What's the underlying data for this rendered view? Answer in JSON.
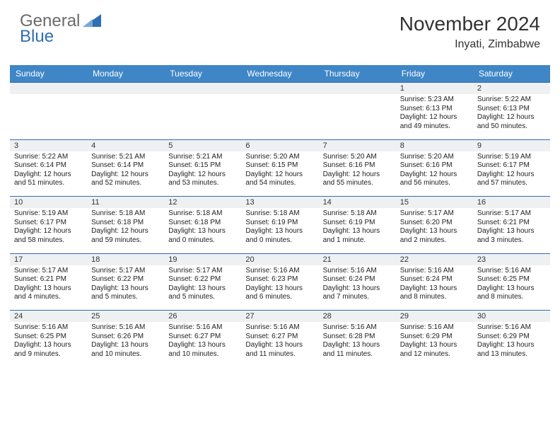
{
  "brand": {
    "word1": "General",
    "word2": "Blue"
  },
  "header": {
    "month_title": "November 2024",
    "location": "Inyati, Zimbabwe"
  },
  "colors": {
    "header_bg": "#3f86c7",
    "rule": "#2f6fb3",
    "daynum_bg": "#eef0f2"
  },
  "weekdays": [
    "Sunday",
    "Monday",
    "Tuesday",
    "Wednesday",
    "Thursday",
    "Friday",
    "Saturday"
  ],
  "weeks": [
    [
      null,
      null,
      null,
      null,
      null,
      {
        "n": "1",
        "sunrise": "5:23 AM",
        "sunset": "6:13 PM",
        "dl1": "Daylight: 12 hours",
        "dl2": "and 49 minutes."
      },
      {
        "n": "2",
        "sunrise": "5:22 AM",
        "sunset": "6:13 PM",
        "dl1": "Daylight: 12 hours",
        "dl2": "and 50 minutes."
      }
    ],
    [
      {
        "n": "3",
        "sunrise": "5:22 AM",
        "sunset": "6:14 PM",
        "dl1": "Daylight: 12 hours",
        "dl2": "and 51 minutes."
      },
      {
        "n": "4",
        "sunrise": "5:21 AM",
        "sunset": "6:14 PM",
        "dl1": "Daylight: 12 hours",
        "dl2": "and 52 minutes."
      },
      {
        "n": "5",
        "sunrise": "5:21 AM",
        "sunset": "6:15 PM",
        "dl1": "Daylight: 12 hours",
        "dl2": "and 53 minutes."
      },
      {
        "n": "6",
        "sunrise": "5:20 AM",
        "sunset": "6:15 PM",
        "dl1": "Daylight: 12 hours",
        "dl2": "and 54 minutes."
      },
      {
        "n": "7",
        "sunrise": "5:20 AM",
        "sunset": "6:16 PM",
        "dl1": "Daylight: 12 hours",
        "dl2": "and 55 minutes."
      },
      {
        "n": "8",
        "sunrise": "5:20 AM",
        "sunset": "6:16 PM",
        "dl1": "Daylight: 12 hours",
        "dl2": "and 56 minutes."
      },
      {
        "n": "9",
        "sunrise": "5:19 AM",
        "sunset": "6:17 PM",
        "dl1": "Daylight: 12 hours",
        "dl2": "and 57 minutes."
      }
    ],
    [
      {
        "n": "10",
        "sunrise": "5:19 AM",
        "sunset": "6:17 PM",
        "dl1": "Daylight: 12 hours",
        "dl2": "and 58 minutes."
      },
      {
        "n": "11",
        "sunrise": "5:18 AM",
        "sunset": "6:18 PM",
        "dl1": "Daylight: 12 hours",
        "dl2": "and 59 minutes."
      },
      {
        "n": "12",
        "sunrise": "5:18 AM",
        "sunset": "6:18 PM",
        "dl1": "Daylight: 13 hours",
        "dl2": "and 0 minutes."
      },
      {
        "n": "13",
        "sunrise": "5:18 AM",
        "sunset": "6:19 PM",
        "dl1": "Daylight: 13 hours",
        "dl2": "and 0 minutes."
      },
      {
        "n": "14",
        "sunrise": "5:18 AM",
        "sunset": "6:19 PM",
        "dl1": "Daylight: 13 hours",
        "dl2": "and 1 minute."
      },
      {
        "n": "15",
        "sunrise": "5:17 AM",
        "sunset": "6:20 PM",
        "dl1": "Daylight: 13 hours",
        "dl2": "and 2 minutes."
      },
      {
        "n": "16",
        "sunrise": "5:17 AM",
        "sunset": "6:21 PM",
        "dl1": "Daylight: 13 hours",
        "dl2": "and 3 minutes."
      }
    ],
    [
      {
        "n": "17",
        "sunrise": "5:17 AM",
        "sunset": "6:21 PM",
        "dl1": "Daylight: 13 hours",
        "dl2": "and 4 minutes."
      },
      {
        "n": "18",
        "sunrise": "5:17 AM",
        "sunset": "6:22 PM",
        "dl1": "Daylight: 13 hours",
        "dl2": "and 5 minutes."
      },
      {
        "n": "19",
        "sunrise": "5:17 AM",
        "sunset": "6:22 PM",
        "dl1": "Daylight: 13 hours",
        "dl2": "and 5 minutes."
      },
      {
        "n": "20",
        "sunrise": "5:16 AM",
        "sunset": "6:23 PM",
        "dl1": "Daylight: 13 hours",
        "dl2": "and 6 minutes."
      },
      {
        "n": "21",
        "sunrise": "5:16 AM",
        "sunset": "6:24 PM",
        "dl1": "Daylight: 13 hours",
        "dl2": "and 7 minutes."
      },
      {
        "n": "22",
        "sunrise": "5:16 AM",
        "sunset": "6:24 PM",
        "dl1": "Daylight: 13 hours",
        "dl2": "and 8 minutes."
      },
      {
        "n": "23",
        "sunrise": "5:16 AM",
        "sunset": "6:25 PM",
        "dl1": "Daylight: 13 hours",
        "dl2": "and 8 minutes."
      }
    ],
    [
      {
        "n": "24",
        "sunrise": "5:16 AM",
        "sunset": "6:25 PM",
        "dl1": "Daylight: 13 hours",
        "dl2": "and 9 minutes."
      },
      {
        "n": "25",
        "sunrise": "5:16 AM",
        "sunset": "6:26 PM",
        "dl1": "Daylight: 13 hours",
        "dl2": "and 10 minutes."
      },
      {
        "n": "26",
        "sunrise": "5:16 AM",
        "sunset": "6:27 PM",
        "dl1": "Daylight: 13 hours",
        "dl2": "and 10 minutes."
      },
      {
        "n": "27",
        "sunrise": "5:16 AM",
        "sunset": "6:27 PM",
        "dl1": "Daylight: 13 hours",
        "dl2": "and 11 minutes."
      },
      {
        "n": "28",
        "sunrise": "5:16 AM",
        "sunset": "6:28 PM",
        "dl1": "Daylight: 13 hours",
        "dl2": "and 11 minutes."
      },
      {
        "n": "29",
        "sunrise": "5:16 AM",
        "sunset": "6:29 PM",
        "dl1": "Daylight: 13 hours",
        "dl2": "and 12 minutes."
      },
      {
        "n": "30",
        "sunrise": "5:16 AM",
        "sunset": "6:29 PM",
        "dl1": "Daylight: 13 hours",
        "dl2": "and 13 minutes."
      }
    ]
  ],
  "labels": {
    "sunrise": "Sunrise: ",
    "sunset": "Sunset: "
  }
}
